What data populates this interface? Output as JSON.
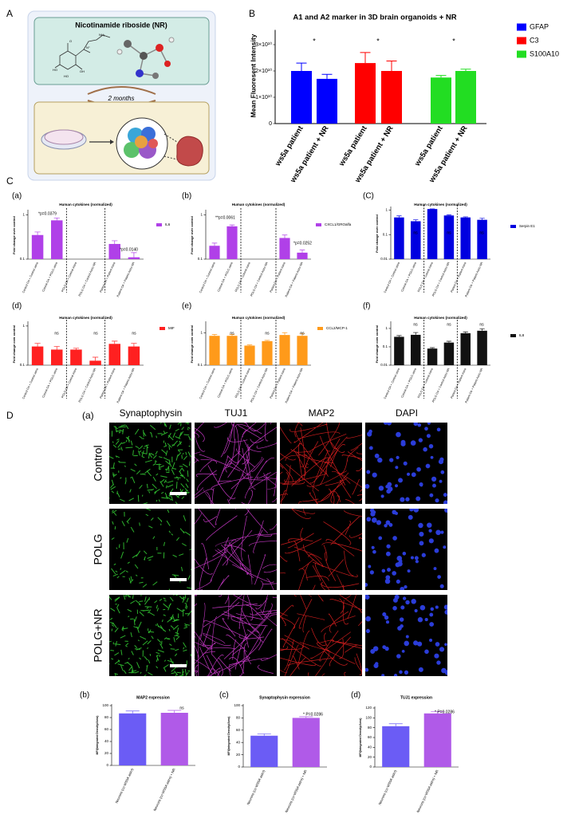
{
  "panel_labels": [
    "A",
    "C",
    "D",
    "(a)"
  ],
  "illustration": {
    "title": "Nicotinamide riboside (NR)",
    "duration": "2 months",
    "atom_labels": [
      "HO",
      "OH",
      "HO",
      "NH₂",
      "N⁺",
      "O"
    ]
  },
  "microscopy": {
    "channels": [
      "Synaptophysin",
      "TUJ1",
      "MAP2",
      "DAPI"
    ],
    "conditions": [
      "Control",
      "POLG",
      "POLG+NR"
    ]
  },
  "chart_data": [
    {
      "type": "bar",
      "panel": "B",
      "title": "A1 and A2 marker in 3D brain organoids + NR",
      "ylabel": "Mean Fluoresent Intensity",
      "categories": [
        "ws5a patient",
        "ws5a patient + NR",
        "ws5a patient",
        "ws5a patient + NR",
        "ws5a patient",
        "ws5a patient + NR"
      ],
      "series": [
        {
          "name": "GFAP",
          "color": "#0000ff",
          "values": [
            20000000000,
            17000000000,
            null,
            null,
            null,
            null
          ],
          "errors": [
            3000000000,
            1700000000,
            null,
            null,
            null,
            null
          ]
        },
        {
          "name": "C3",
          "color": "#ff0000",
          "values": [
            null,
            null,
            23000000000,
            20000000000,
            null,
            null
          ],
          "errors": [
            null,
            null,
            4000000000,
            3800000000,
            null,
            null
          ]
        },
        {
          "name": "S100A10",
          "color": "#22dd22",
          "values": [
            null,
            null,
            null,
            null,
            17500000000,
            20000000000
          ],
          "errors": [
            null,
            null,
            null,
            null,
            800000000,
            700000000
          ]
        }
      ],
      "ylim": [
        0,
        35000000000
      ],
      "yticks": [
        0,
        {
          "value": 10000000000,
          "label": "1×10¹⁰"
        },
        {
          "value": 20000000000,
          "label": "2×10¹⁰"
        },
        {
          "value": 30000000000,
          "label": "3×10¹⁰"
        }
      ],
      "legend": "right",
      "annotations": [
        "*",
        "*",
        "*"
      ]
    },
    {
      "type": "bar",
      "panel": "(a)",
      "title": "Human cytokines (normalized)",
      "ylabel": "Fold change over control",
      "categories": [
        "Control OA + Control astro",
        "Control OA + POLG astro",
        "POLG OA + Control Astro",
        "POLG OA + Control Astro NR",
        "Patient OA + Patient Astro",
        "Patient OA + Patient Astro NR"
      ],
      "series": [
        {
          "name": "IL6",
          "color": "#b040e8",
          "values": [
            0.35,
            0.75,
            null,
            null,
            0.22,
            0.11
          ],
          "errors": [
            0.06,
            0.1,
            null,
            null,
            0.04,
            0.03
          ]
        }
      ],
      "ylim": [
        0.1,
        1.2
      ],
      "yticks": [
        0.1,
        1
      ],
      "log_scale": true,
      "legend": "right",
      "annotations": [
        "*p=0.0379",
        "*p=0.0140"
      ]
    },
    {
      "type": "bar",
      "panel": "(b)",
      "title": "Human cytokines (normalized)",
      "ylabel": "Fold change over control",
      "categories": [
        "Control OA + Control astro",
        "Control OA + POLG astro",
        "POLG OA + Control Astro",
        "POLG OA + Control Astro NR",
        "Patient OA + Patient Astro",
        "Patient OA + Patient Astro NR"
      ],
      "series": [
        {
          "name": "CXCL1/GROalfa",
          "color": "#b040e8",
          "values": [
            0.2,
            0.55,
            null,
            null,
            0.3,
            0.14
          ],
          "errors": [
            0.03,
            0.04,
            null,
            null,
            0.05,
            0.02
          ]
        }
      ],
      "ylim": [
        0.1,
        1.2
      ],
      "yticks": [
        0.1,
        1
      ],
      "log_scale": true,
      "legend": "right",
      "annotations": [
        "**p=0.0061",
        "*p=0.0252"
      ]
    },
    {
      "type": "bar",
      "panel": "(C)",
      "title": "Human cytokines (normalized)",
      "ylabel": "Fold change over control",
      "categories": [
        "Control OA + Control astro",
        "Control OA + POLG astro",
        "POLG OA + Control Astro",
        "POLG OA + Control Astro NR",
        "Patient OA + Patient Astro",
        "Patient OA + Patient Astro NR"
      ],
      "series": [
        {
          "name": "Serpin E1",
          "color": "#0000e0",
          "values": [
            0.5,
            0.35,
            1.1,
            0.6,
            0.5,
            0.4
          ],
          "errors": [
            0.08,
            0.05,
            0.02,
            0.04,
            0.03,
            0.06
          ]
        }
      ],
      "ylim": [
        0.01,
        1.2
      ],
      "yticks": [
        0.01,
        0.1,
        1
      ],
      "log_scale": true,
      "legend": "right",
      "annotations": [
        "ns",
        "ns",
        "ns"
      ]
    },
    {
      "type": "bar",
      "panel": "(d)",
      "title": "Human cytokines (normalized)",
      "ylabel": "Fold change over control",
      "categories": [
        "Control OA + Control astro",
        "Control OA + POLG astro",
        "POLG OA + Control Astro",
        "POLG OA + Control Astro NR",
        "Patient OA + Patient Astro",
        "Patient OA + Patient Astro NR"
      ],
      "series": [
        {
          "name": "MIF",
          "color": "#ff2020",
          "values": [
            0.3,
            0.25,
            0.25,
            0.13,
            0.35,
            0.3
          ],
          "errors": [
            0.06,
            0.05,
            0.02,
            0.03,
            0.06,
            0.06
          ]
        }
      ],
      "ylim": [
        0.1,
        1.2
      ],
      "yticks": [
        0.1,
        1
      ],
      "log_scale": true,
      "legend": "right",
      "annotations": [
        "ns",
        "ns",
        "ns"
      ]
    },
    {
      "type": "bar",
      "panel": "(e)",
      "title": "Human cytokines (normalized)",
      "ylabel": "Fold change over control",
      "categories": [
        "Control OA + Control astro",
        "Control OA + POLG astro",
        "POLG OA + Control Astro",
        "POLG OA + Control Astro NR",
        "Patient OA + Patient Astro",
        "Patient OA + Patient Astro NR"
      ],
      "series": [
        {
          "name": "CCL2/MCP-1",
          "color": "#ff9a1a",
          "values": [
            0.8,
            0.8,
            0.4,
            0.55,
            0.85,
            0.8
          ],
          "errors": [
            0.08,
            0.08,
            0.02,
            0.03,
            0.15,
            0.15
          ]
        }
      ],
      "ylim": [
        0.1,
        2
      ],
      "yticks": [
        0.1,
        1
      ],
      "log_scale": true,
      "legend": "right",
      "annotations": [
        "ns",
        "ns",
        "ns"
      ]
    },
    {
      "type": "bar",
      "panel": "(f)",
      "title": "Human cytokines (normalized)",
      "ylabel": "Fold change over control",
      "categories": [
        "Control OA + Control astro",
        "Control OA + POLG astro",
        "POLG OA + Control Astro",
        "POLG OA + Control Astro NR",
        "Patient OA + Patient Astro",
        "Patient OA + Patient Astro NR"
      ],
      "series": [
        {
          "name": "IL8",
          "color": "#111111",
          "values": [
            0.35,
            0.45,
            0.08,
            0.17,
            0.55,
            0.75
          ],
          "errors": [
            0.06,
            0.15,
            0.01,
            0.03,
            0.1,
            0.2
          ]
        }
      ],
      "ylim": [
        0.01,
        2
      ],
      "yticks": [
        0.01,
        0.1,
        1
      ],
      "log_scale": true,
      "legend": "right",
      "annotations": [
        "ns",
        "ns",
        "ns"
      ]
    },
    {
      "type": "bar",
      "panel": "(b)",
      "title": "MAP2 expression",
      "ylabel": "MFI(Integrated Density/Area)",
      "categories": [
        "Neurons (co-WS5A astro)",
        "Neurons (co-WS5A astro) + NR"
      ],
      "series": [
        {
          "colors": [
            "#6b5cf5",
            "#b05ae8"
          ],
          "values": [
            87,
            88
          ],
          "errors": [
            4,
            4
          ]
        }
      ],
      "ylim": [
        0,
        100
      ],
      "yticks": [
        0,
        20,
        40,
        60,
        80,
        100
      ],
      "annotations": [
        "ns"
      ]
    },
    {
      "type": "bar",
      "panel": "(c)",
      "title": "Synaptophysin expression",
      "ylabel": "MFI(Integrated Density/Area)",
      "categories": [
        "Neurons (co-WS5A astro)",
        "Neurons (co-WS5A astro) + NR"
      ],
      "series": [
        {
          "colors": [
            "#6b5cf5",
            "#b05ae8"
          ],
          "values": [
            51,
            80
          ],
          "errors": [
            3,
            2
          ]
        }
      ],
      "ylim": [
        0,
        100
      ],
      "yticks": [
        0,
        20,
        40,
        60,
        80,
        100
      ],
      "annotations": [
        "* P=0.0286"
      ]
    },
    {
      "type": "bar",
      "panel": "(d)",
      "title": "TUJ1 expression",
      "ylabel": "MFI(Integrated Density/Area)",
      "categories": [
        "Neurons (co-WS5A astro)",
        "Neurons (co-WS5A astro) + NR"
      ],
      "series": [
        {
          "colors": [
            "#6b5cf5",
            "#b05ae8"
          ],
          "values": [
            83,
            109
          ],
          "errors": [
            5,
            4
          ]
        }
      ],
      "ylim": [
        0,
        120
      ],
      "yticks": [
        0,
        20,
        40,
        60,
        80,
        100,
        120
      ],
      "annotations": [
        "* P=0.0286"
      ]
    }
  ]
}
